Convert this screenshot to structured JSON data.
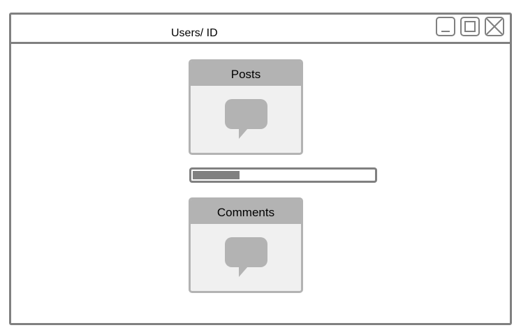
{
  "window": {
    "title": "Users/ ID",
    "controls": {
      "minimize": "minimize-icon",
      "maximize": "maximize-icon",
      "close": "close-icon"
    }
  },
  "cards": [
    {
      "title": "Posts",
      "icon": "speech-bubble-icon"
    },
    {
      "title": "Comments",
      "icon": "speech-bubble-icon"
    }
  ],
  "progress": {
    "fraction": 0.26,
    "fill_color": "#808080"
  },
  "colors": {
    "border": "#808080",
    "card_header": "#b3b3b3",
    "card_body": "#f0f0f0",
    "icon": "#b3b3b3"
  }
}
